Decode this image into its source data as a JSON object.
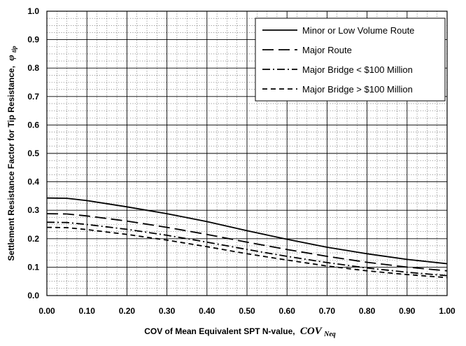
{
  "chart_data": {
    "type": "line",
    "xlabel": "COV of Mean Equivalent SPT N-value,",
    "xlabel_symbol": "COV",
    "xlabel_subscript": "Neq",
    "ylabel": "Settlement Resistance Factor for Tip Resistance,",
    "ylabel_symbol": "φ",
    "ylabel_subscript": "tip",
    "xlim": [
      0,
      1
    ],
    "ylim": [
      0,
      1
    ],
    "x_ticks": [
      "0.00",
      "0.10",
      "0.20",
      "0.30",
      "0.40",
      "0.50",
      "0.60",
      "0.70",
      "0.80",
      "0.90",
      "1.00"
    ],
    "y_ticks": [
      "0.0",
      "0.1",
      "0.2",
      "0.3",
      "0.4",
      "0.5",
      "0.6",
      "0.7",
      "0.8",
      "0.9",
      "1.0"
    ],
    "grid": "major solid, minor dotted",
    "legend_position": "top-right",
    "x": [
      0,
      0.05,
      0.1,
      0.2,
      0.3,
      0.4,
      0.5,
      0.6,
      0.7,
      0.8,
      0.9,
      1.0
    ],
    "series": [
      {
        "name": "Minor or Low Volume Route",
        "style": "solid",
        "values": [
          0.343,
          0.342,
          0.334,
          0.312,
          0.288,
          0.26,
          0.228,
          0.198,
          0.17,
          0.147,
          0.127,
          0.112
        ]
      },
      {
        "name": "Major Route",
        "style": "longdash",
        "values": [
          0.288,
          0.287,
          0.28,
          0.262,
          0.24,
          0.215,
          0.188,
          0.162,
          0.138,
          0.117,
          0.1,
          0.087
        ]
      },
      {
        "name": "Major Bridge < $100 Million",
        "style": "dashdot",
        "values": [
          0.258,
          0.257,
          0.25,
          0.233,
          0.212,
          0.188,
          0.162,
          0.138,
          0.116,
          0.097,
          0.082,
          0.07
        ]
      },
      {
        "name": "Major Bridge > $100 Million",
        "style": "shortdash",
        "values": [
          0.24,
          0.239,
          0.232,
          0.215,
          0.195,
          0.172,
          0.147,
          0.125,
          0.104,
          0.087,
          0.074,
          0.063
        ]
      }
    ]
  }
}
